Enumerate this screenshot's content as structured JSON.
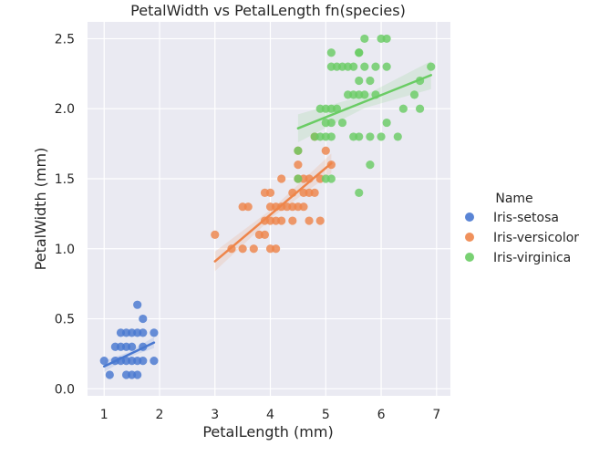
{
  "chart_data": {
    "type": "scatter",
    "title": "PetalWidth vs PetalLength fn(species)",
    "xlabel": "PetalLength (mm)",
    "ylabel": "PetalWidth (mm)",
    "xlim": [
      0.7,
      7.25
    ],
    "ylim": [
      -0.05,
      2.62
    ],
    "xticks": [
      1,
      2,
      3,
      4,
      5,
      6,
      7
    ],
    "yticks": [
      0.0,
      0.5,
      1.0,
      1.5,
      2.0,
      2.5
    ],
    "xtick_labels": [
      "1",
      "2",
      "3",
      "4",
      "5",
      "6",
      "7"
    ],
    "ytick_labels": [
      "0.0",
      "0.5",
      "1.0",
      "1.5",
      "2.0",
      "2.5"
    ],
    "grid": true,
    "background": "#eaeaf2",
    "legend_title": "Name",
    "legend_position": "right",
    "series": [
      {
        "name": "Iris-setosa",
        "color": "#4878d0",
        "fit": {
          "x0": 1.0,
          "y0": 0.16,
          "x1": 1.9,
          "y1": 0.33
        },
        "ci_halfwidth": 0.04,
        "points": [
          [
            1.0,
            0.2
          ],
          [
            1.1,
            0.1
          ],
          [
            1.2,
            0.2
          ],
          [
            1.3,
            0.2
          ],
          [
            1.3,
            0.3
          ],
          [
            1.3,
            0.4
          ],
          [
            1.4,
            0.2
          ],
          [
            1.4,
            0.3
          ],
          [
            1.4,
            0.1
          ],
          [
            1.5,
            0.2
          ],
          [
            1.5,
            0.4
          ],
          [
            1.5,
            0.1
          ],
          [
            1.5,
            0.3
          ],
          [
            1.6,
            0.2
          ],
          [
            1.6,
            0.4
          ],
          [
            1.6,
            0.6
          ],
          [
            1.7,
            0.2
          ],
          [
            1.7,
            0.3
          ],
          [
            1.7,
            0.5
          ],
          [
            1.7,
            0.4
          ],
          [
            1.9,
            0.2
          ],
          [
            1.9,
            0.4
          ],
          [
            1.6,
            0.1
          ],
          [
            1.4,
            0.4
          ],
          [
            1.2,
            0.3
          ]
        ]
      },
      {
        "name": "Iris-versicolor",
        "color": "#ee854a",
        "fit": {
          "x0": 3.0,
          "y0": 0.91,
          "x1": 5.1,
          "y1": 1.61
        },
        "ci_halfwidth": 0.07,
        "points": [
          [
            3.0,
            1.1
          ],
          [
            3.3,
            1.0
          ],
          [
            3.5,
            1.0
          ],
          [
            3.5,
            1.3
          ],
          [
            3.6,
            1.3
          ],
          [
            3.7,
            1.0
          ],
          [
            3.8,
            1.1
          ],
          [
            3.9,
            1.1
          ],
          [
            3.9,
            1.2
          ],
          [
            3.9,
            1.4
          ],
          [
            4.0,
            1.0
          ],
          [
            4.0,
            1.2
          ],
          [
            4.0,
            1.3
          ],
          [
            4.1,
            1.0
          ],
          [
            4.1,
            1.3
          ],
          [
            4.1,
            1.2
          ],
          [
            4.2,
            1.2
          ],
          [
            4.2,
            1.3
          ],
          [
            4.2,
            1.5
          ],
          [
            4.3,
            1.3
          ],
          [
            4.4,
            1.2
          ],
          [
            4.4,
            1.3
          ],
          [
            4.4,
            1.4
          ],
          [
            4.5,
            1.3
          ],
          [
            4.5,
            1.5
          ],
          [
            4.5,
            1.6
          ],
          [
            4.6,
            1.3
          ],
          [
            4.6,
            1.4
          ],
          [
            4.6,
            1.5
          ],
          [
            4.7,
            1.2
          ],
          [
            4.7,
            1.4
          ],
          [
            4.7,
            1.5
          ],
          [
            4.8,
            1.4
          ],
          [
            4.8,
            1.8
          ],
          [
            4.9,
            1.5
          ],
          [
            5.0,
            1.7
          ],
          [
            5.1,
            1.6
          ],
          [
            4.5,
            1.7
          ],
          [
            4.9,
            1.2
          ],
          [
            4.0,
            1.4
          ]
        ]
      },
      {
        "name": "Iris-virginica",
        "color": "#6acc64",
        "fit": {
          "x0": 4.5,
          "y0": 1.86,
          "x1": 6.9,
          "y1": 2.24
        },
        "ci_halfwidth": 0.1,
        "points": [
          [
            4.5,
            1.7
          ],
          [
            4.8,
            1.8
          ],
          [
            4.9,
            1.8
          ],
          [
            4.9,
            2.0
          ],
          [
            5.0,
            1.5
          ],
          [
            5.0,
            1.9
          ],
          [
            5.0,
            2.0
          ],
          [
            5.1,
            1.5
          ],
          [
            5.1,
            1.8
          ],
          [
            5.1,
            1.9
          ],
          [
            5.1,
            2.0
          ],
          [
            5.1,
            2.3
          ],
          [
            5.1,
            2.4
          ],
          [
            5.2,
            2.0
          ],
          [
            5.2,
            2.3
          ],
          [
            5.3,
            1.9
          ],
          [
            5.3,
            2.3
          ],
          [
            5.4,
            2.1
          ],
          [
            5.4,
            2.3
          ],
          [
            5.5,
            1.8
          ],
          [
            5.5,
            2.1
          ],
          [
            5.6,
            1.4
          ],
          [
            5.6,
            1.8
          ],
          [
            5.6,
            2.1
          ],
          [
            5.6,
            2.2
          ],
          [
            5.6,
            2.4
          ],
          [
            5.7,
            2.1
          ],
          [
            5.7,
            2.3
          ],
          [
            5.7,
            2.5
          ],
          [
            5.8,
            1.6
          ],
          [
            5.8,
            1.8
          ],
          [
            5.8,
            2.2
          ],
          [
            5.9,
            2.1
          ],
          [
            5.9,
            2.3
          ],
          [
            6.0,
            1.8
          ],
          [
            6.0,
            2.5
          ],
          [
            6.1,
            1.9
          ],
          [
            6.1,
            2.3
          ],
          [
            6.1,
            2.5
          ],
          [
            6.3,
            1.8
          ],
          [
            6.4,
            2.0
          ],
          [
            6.6,
            2.1
          ],
          [
            6.7,
            2.0
          ],
          [
            6.7,
            2.2
          ],
          [
            6.9,
            2.3
          ],
          [
            4.5,
            1.5
          ],
          [
            5.5,
            2.3
          ],
          [
            5.6,
            2.4
          ],
          [
            5.0,
            1.8
          ]
        ]
      }
    ]
  }
}
